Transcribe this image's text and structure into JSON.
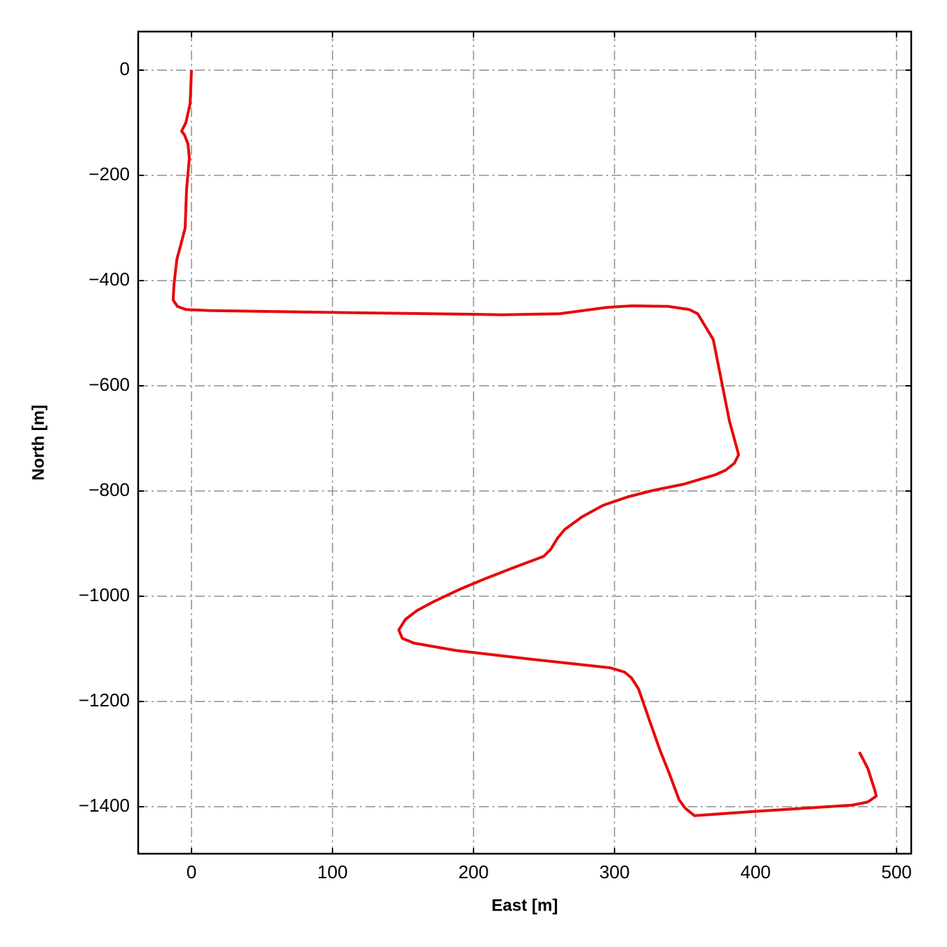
{
  "chart_data": {
    "type": "line",
    "xlabel": "East [m]",
    "ylabel": "North [m]",
    "x": [
      0,
      -1,
      -4,
      -7,
      -5,
      -2.5,
      -1.5,
      -3.5,
      -4.5,
      -7.5,
      -10.4,
      -12.4,
      -13,
      -10,
      -4,
      13.4,
      113,
      200,
      220,
      261,
      294.5,
      312,
      338,
      353,
      359,
      370,
      381.5,
      388,
      385,
      379,
      371.6,
      349,
      327,
      309.5,
      292,
      277,
      264.7,
      259.7,
      254.7,
      249.8,
      227,
      207,
      190,
      172.6,
      160,
      151.7,
      147,
      149.5,
      157.7,
      187.5,
      242,
      297,
      307,
      312,
      317,
      324.4,
      332,
      339.3,
      345.8,
      350.2,
      356.7,
      399,
      468.7,
      479.6,
      485.6,
      484.6,
      479.6,
      473.6
    ],
    "values": [
      0,
      -64,
      -100,
      -116,
      -123,
      -140,
      -167,
      -227,
      -300,
      -331,
      -360,
      -407,
      -437,
      -449,
      -455,
      -457,
      -461,
      -464,
      -465,
      -463,
      -451,
      -448,
      -449,
      -455,
      -463,
      -512,
      -667,
      -731,
      -747,
      -760,
      -769,
      -787,
      -799,
      -811,
      -827,
      -849,
      -873,
      -889,
      -911,
      -924,
      -947,
      -968,
      -987,
      -1009,
      -1027,
      -1044,
      -1064,
      -1080,
      -1089,
      -1103,
      -1120,
      -1136,
      -1144,
      -1155,
      -1176,
      -1233,
      -1291,
      -1340,
      -1387,
      -1403,
      -1417,
      -1409,
      -1397,
      -1391,
      -1380,
      -1369,
      -1327,
      -1296
    ],
    "color": "#e8080a",
    "xlim": [
      -37.8,
      510.4
    ],
    "ylim": [
      -1489.3,
      73.3
    ],
    "xticks": [
      0,
      100,
      200,
      300,
      400,
      500
    ],
    "yticks": [
      0,
      {
        "value": -200,
        "label": "−200"
      },
      {
        "value": -400,
        "label": "−400"
      },
      {
        "value": -600,
        "label": "−600"
      },
      {
        "value": -800,
        "label": "−800"
      },
      {
        "value": -1000,
        "label": "−1000"
      },
      {
        "value": -1200,
        "label": "−1200"
      },
      {
        "value": -1400,
        "label": "−1400"
      }
    ],
    "grid": true
  }
}
